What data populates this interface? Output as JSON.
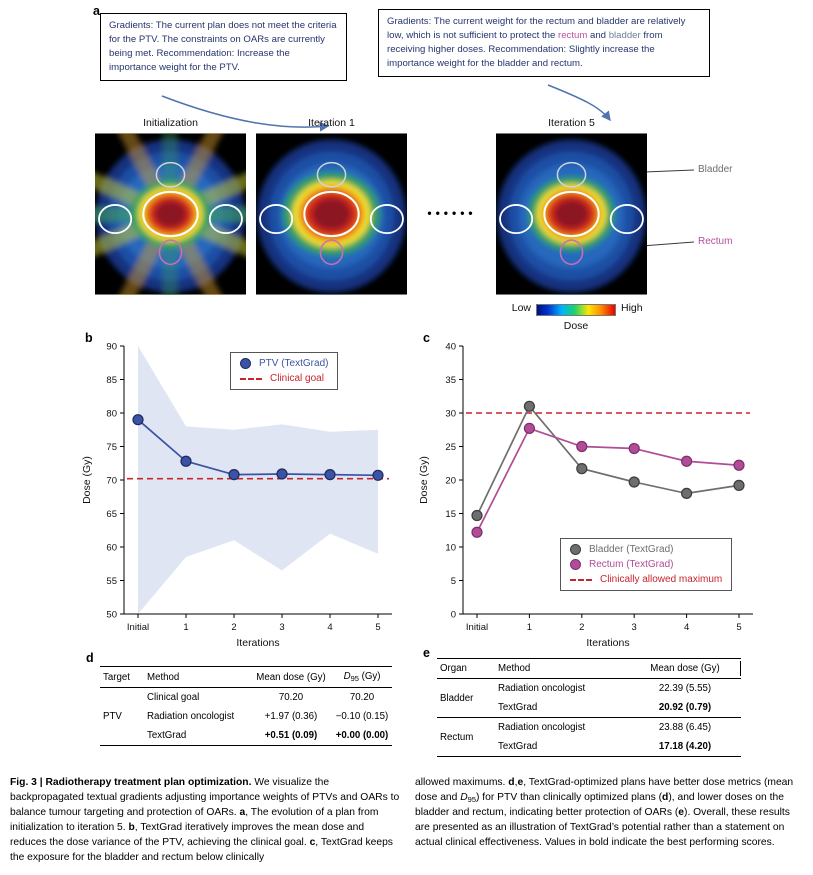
{
  "panel_labels": {
    "a": "a",
    "b": "b",
    "c": "c",
    "d": "d",
    "e": "e"
  },
  "panel_a": {
    "left_box": {
      "text_color": "#26356e",
      "segments": [
        {
          "text": "Gradients: The current plan does not meet the criteria for the PTV. The constraints on OARs are currently being met. Recommendation: Increase the importance weight for the PTV."
        }
      ]
    },
    "right_box": {
      "text_color": "#26356e",
      "segments": [
        {
          "text": "Gradients: The current weight for the rectum and bladder are relatively low, which is not sufficient to protect the "
        },
        {
          "text": "rectum",
          "color": "#bf4fa0"
        },
        {
          "text": " and "
        },
        {
          "text": "bladder",
          "color": "#6f7f96"
        },
        {
          "text": " from receiving higher doses. Recommendation: Slightly increase the importance weight for the bladder and rectum."
        }
      ]
    },
    "image_labels": [
      "Initialization",
      "Iteration 1",
      "Iteration 5"
    ],
    "dots": "••••••",
    "annotations": [
      {
        "label": "Bladder",
        "color": "#6d6d6d"
      },
      {
        "label": "Rectum",
        "color": "#b0509b"
      }
    ],
    "colorbar": {
      "low": "Low",
      "high": "High",
      "title": "Dose"
    }
  },
  "chart_data": [
    {
      "id": "b",
      "type": "line",
      "title": "",
      "categories": [
        "Initial",
        "1",
        "2",
        "3",
        "4",
        "5"
      ],
      "series": [
        {
          "name": "PTV (TextGrad)",
          "color": "#3b53a5",
          "edge": "#1f2a5e",
          "values": [
            79,
            72.8,
            70.8,
            70.9,
            70.8,
            70.7
          ]
        }
      ],
      "band": {
        "upper": [
          90,
          78,
          77.5,
          78.3,
          77.2,
          77.5
        ],
        "lower": [
          50,
          58.5,
          61,
          56.5,
          62,
          59
        ],
        "color": "#dfe5f2"
      },
      "reference_line": {
        "label": "Clinical goal",
        "value": 70.2,
        "color": "#c8252c",
        "style": "dashed"
      },
      "xlabel": "Iterations",
      "ylabel": "Dose (Gy)",
      "ylim": [
        50,
        90
      ],
      "ytick_step": 5,
      "grid": false,
      "legend_position": "top-right"
    },
    {
      "id": "c",
      "type": "line",
      "title": "",
      "categories": [
        "Initial",
        "1",
        "2",
        "3",
        "4",
        "5"
      ],
      "series": [
        {
          "name": "Bladder (TextGrad)",
          "color": "#6e6e6e",
          "edge": "#3c3c3c",
          "values": [
            14.7,
            31,
            21.7,
            19.7,
            18,
            19.2
          ]
        },
        {
          "name": "Rectum (TextGrad)",
          "color": "#b04d96",
          "edge": "#7c2f6e",
          "values": [
            12.2,
            27.7,
            25,
            24.7,
            22.8,
            22.2
          ]
        }
      ],
      "reference_line": {
        "label": "Clinically allowed maximum",
        "value": 30,
        "color": "#c8252c",
        "style": "dashed"
      },
      "xlabel": "Iterations",
      "ylabel": "Dose (Gy)",
      "ylim": [
        0,
        40
      ],
      "ytick_step": 5,
      "grid": false,
      "legend_position": "bottom-right"
    }
  ],
  "tables": {
    "d": {
      "headers": {
        "target": "Target",
        "method": "Method",
        "mean": "Mean dose (Gy)"
      },
      "d95_header_segments": [
        {
          "text": "D",
          "italic": true
        },
        {
          "text": "95",
          "sub": true
        },
        {
          "text": " (Gy)"
        }
      ],
      "rows": [
        {
          "target": "",
          "method": "Clinical goal",
          "mean": "70.20",
          "d95": "70.20"
        },
        {
          "target": "PTV",
          "method": "Radiation oncologist",
          "mean": "+1.97 (0.36)",
          "d95": "−0.10 (0.15)"
        },
        {
          "target": "",
          "method": "TextGrad",
          "mean": "+0.51 (0.09)",
          "d95": "+0.00 (0.00)"
        }
      ]
    },
    "e": {
      "headers": {
        "organ": "Organ",
        "method": "Method",
        "mean": "Mean dose (Gy)"
      },
      "groups": [
        {
          "organ": "Bladder",
          "rows": [
            {
              "method": "Radiation oncologist",
              "mean": "22.39 (5.55)"
            },
            {
              "method": "TextGrad",
              "mean": "20.92 (0.79)"
            }
          ]
        },
        {
          "organ": "Rectum",
          "rows": [
            {
              "method": "Radiation oncologist",
              "mean": "23.88 (6.45)"
            },
            {
              "method": "TextGrad",
              "mean": "17.18 (4.20)"
            }
          ]
        }
      ]
    }
  },
  "caption": {
    "left_segments": [
      {
        "text": "Fig. 3 | Radiotherapy treatment plan optimization.",
        "bold": true
      },
      {
        "text": " We visualize the backpropagated textual gradients adjusting importance weights of PTVs and OARs to balance tumour targeting and protection of OARs. "
      },
      {
        "text": "a",
        "bold": true
      },
      {
        "text": ", The evolution of a plan from initialization to iteration 5. "
      },
      {
        "text": "b",
        "bold": true
      },
      {
        "text": ", TextGrad iteratively improves the mean dose and reduces the dose variance of the PTV, achieving the clinical goal. "
      },
      {
        "text": "c",
        "bold": true
      },
      {
        "text": ", TextGrad keeps the exposure for the bladder and rectum below clinically"
      }
    ],
    "right_segments": [
      {
        "text": "allowed maximums. "
      },
      {
        "text": "d",
        "bold": true
      },
      {
        "text": ","
      },
      {
        "text": "e",
        "bold": true
      },
      {
        "text": ", TextGrad-optimized plans have better dose metrics (mean dose and "
      },
      {
        "text": "D",
        "italic": true
      },
      {
        "text": "95",
        "sub": true
      },
      {
        "text": ") for PTV than clinically optimized plans ("
      },
      {
        "text": "d",
        "bold": true
      },
      {
        "text": "), and lower doses on the bladder and rectum, indicating better protection of OARs ("
      },
      {
        "text": "e",
        "bold": true
      },
      {
        "text": "). Overall, these results are presented as an illustration of TextGrad’s potential rather than a statement on actual clinical effectiveness. Values in bold indicate the best performing scores."
      }
    ]
  }
}
